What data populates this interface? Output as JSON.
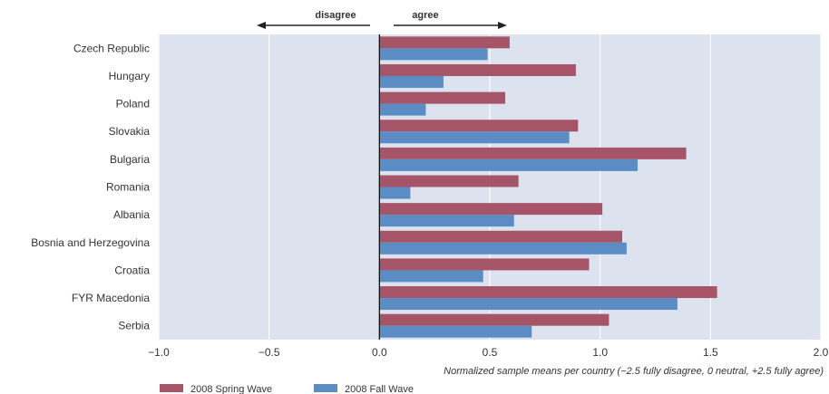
{
  "chart_data": {
    "type": "bar",
    "orientation": "horizontal",
    "categories": [
      "Czech Republic",
      "Hungary",
      "Poland",
      "Slovakia",
      "Bulgaria",
      "Romania",
      "Albania",
      "Bosnia and Herzegovina",
      "Croatia",
      "FYR Macedonia",
      "Serbia"
    ],
    "series": [
      {
        "name": "2008 Spring Wave",
        "color": "#a65468",
        "values": [
          0.59,
          0.89,
          0.57,
          0.9,
          1.39,
          0.63,
          1.01,
          1.1,
          0.95,
          1.53,
          1.04
        ]
      },
      {
        "name": "2008 Fall Wave",
        "color": "#5b8cc4",
        "values": [
          0.49,
          0.29,
          0.21,
          0.86,
          1.17,
          0.14,
          0.61,
          1.12,
          0.47,
          1.35,
          0.69
        ]
      }
    ],
    "xlim": [
      -1.0,
      2.0
    ],
    "xticks": [
      "−1.0",
      "−0.5",
      "0.0",
      "0.5",
      "1.0",
      "1.5",
      "2.0"
    ],
    "xtick_values": [
      -1.0,
      -0.5,
      0.0,
      0.5,
      1.0,
      1.5,
      2.0
    ],
    "xlabel": "Normalized sample means per country (−2.5 fully disagree, 0 neutral, +2.5 fully agree)",
    "direction_labels": {
      "negative": "disagree",
      "positive": "agree"
    },
    "grid": true,
    "legend_position": "bottom-left",
    "plot_background": "#dce3ef"
  }
}
